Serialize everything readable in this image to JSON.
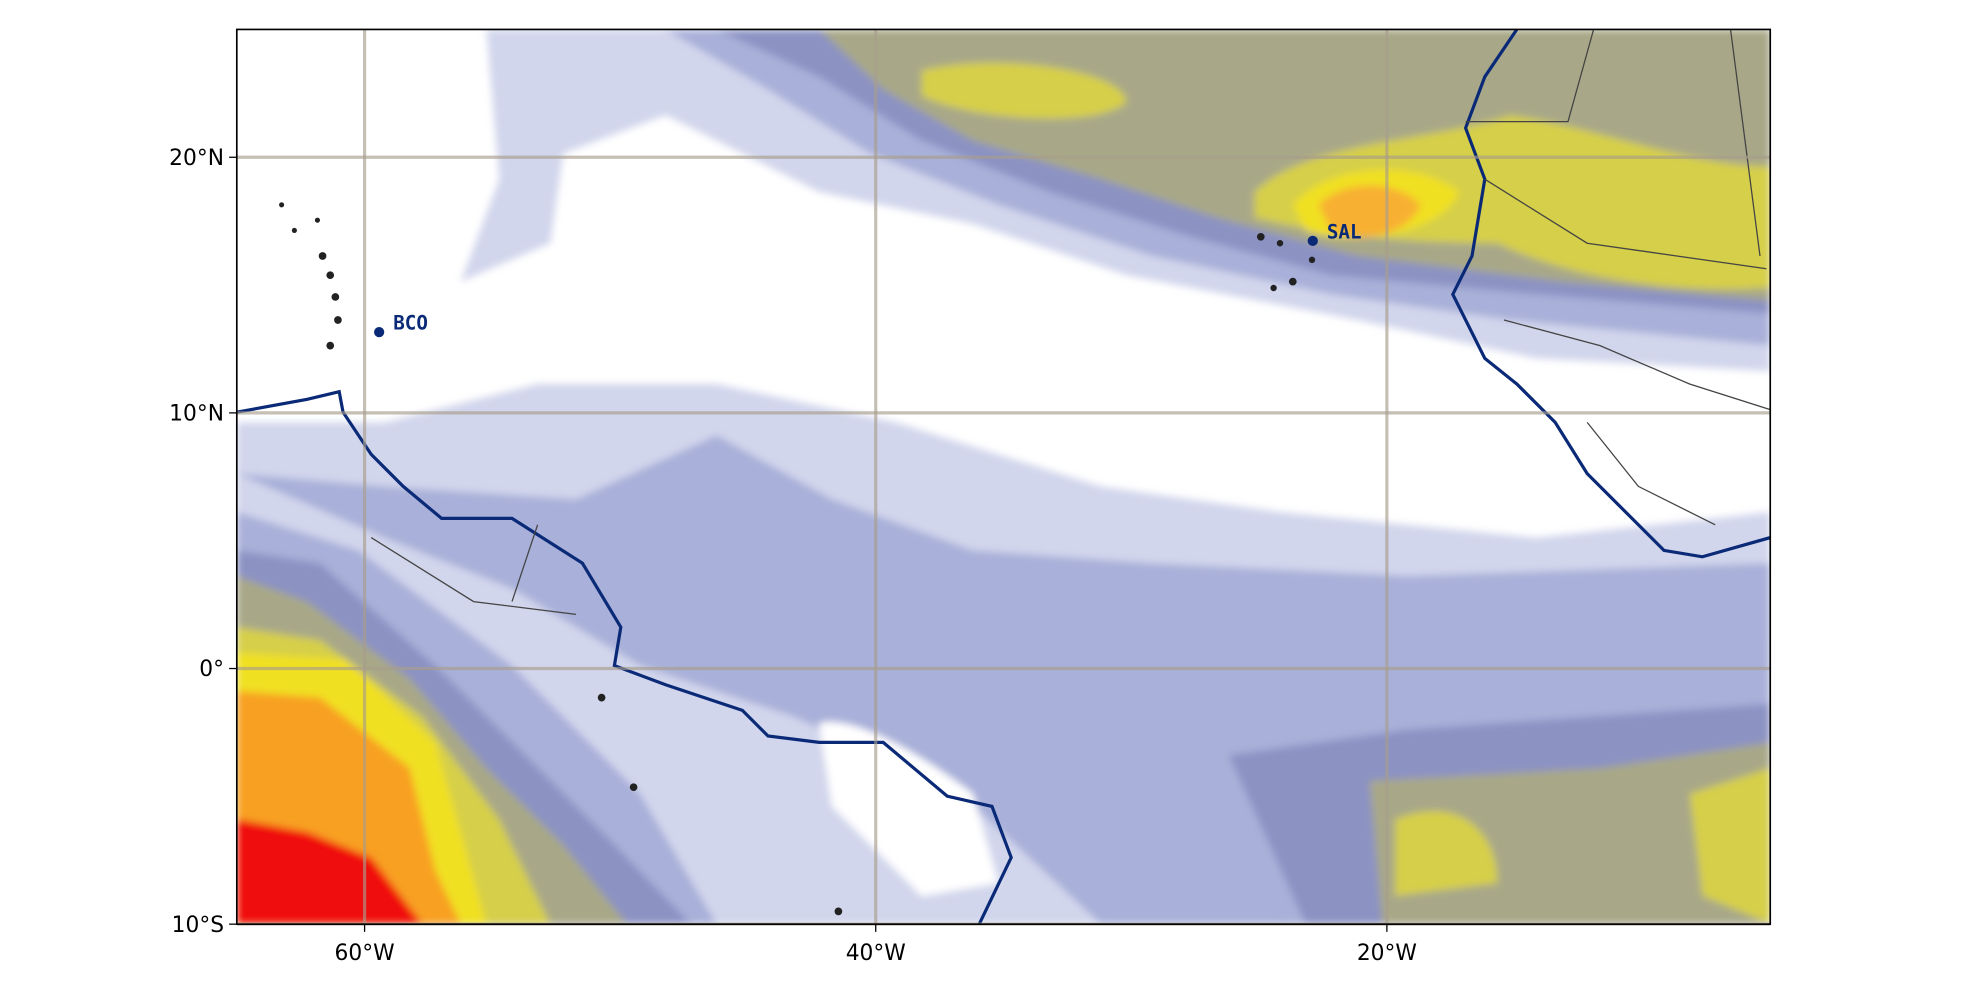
{
  "chart_data": {
    "type": "map",
    "xlim": [
      -65,
      -5
    ],
    "ylim": [
      -10,
      25
    ],
    "xticks": [
      {
        "value": -60,
        "label": "60°W"
      },
      {
        "value": -40,
        "label": "40°W"
      },
      {
        "value": -20,
        "label": "20°W"
      }
    ],
    "yticks": [
      {
        "value": -10,
        "label": "10°S"
      },
      {
        "value": 0,
        "label": "0°"
      },
      {
        "value": 10,
        "label": "10°N"
      },
      {
        "value": 20,
        "label": "20°N"
      }
    ],
    "grid": true,
    "grid_color": "#a89c8c",
    "points": [
      {
        "name": "BCO",
        "x": -59.43,
        "y": 13.16,
        "color": "#0a2a78"
      },
      {
        "name": "SAL",
        "x": -22.9,
        "y": 16.73,
        "color": "#0a2a78"
      }
    ]
  }
}
